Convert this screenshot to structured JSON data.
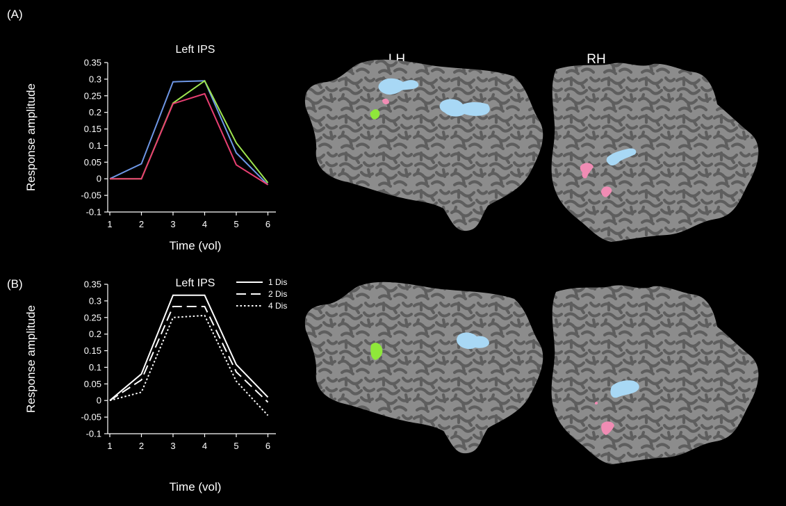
{
  "panels": [
    {
      "letter": "(A)"
    },
    {
      "letter": "(B)"
    }
  ],
  "hemispheres": {
    "left": "LH",
    "right": "RH"
  },
  "colors": {
    "background": "#000000",
    "cortex_light": "#8c8c8c",
    "cortex_dark": "#5e5e5e",
    "roi_blue": "#a8d8f5",
    "roi_pink": "#f08cb4",
    "roi_green": "#8fe83a"
  },
  "chart_data": [
    {
      "type": "line",
      "title": "Left IPS",
      "xlabel": "Time (vol)",
      "ylabel": "Response amplitude",
      "x": [
        1,
        2,
        3,
        4,
        5,
        6
      ],
      "ylim": [
        -0.1,
        0.35
      ],
      "yticks": [
        "0.35",
        "0.3",
        "0.25",
        "0.2",
        "0.15",
        "0.1",
        "0.05",
        "0",
        "-0.05",
        "-0.1"
      ],
      "xticks": [
        "1",
        "2",
        "3",
        "4",
        "5",
        "6"
      ],
      "grid": false,
      "series": [
        {
          "color": "#6e97e6",
          "dash": "solid",
          "values": [
            0.0,
            0.045,
            0.292,
            0.295,
            0.078,
            -0.018
          ]
        },
        {
          "color": "#9ee650",
          "dash": "solid",
          "values": [
            0.0,
            0.0,
            0.228,
            0.295,
            0.108,
            -0.012
          ]
        },
        {
          "color": "#e83f72",
          "dash": "solid",
          "values": [
            0.0,
            0.0,
            0.226,
            0.256,
            0.042,
            -0.018
          ]
        }
      ]
    },
    {
      "type": "line",
      "title": "Left IPS",
      "xlabel": "Time (vol)",
      "ylabel": "Response amplitude",
      "x": [
        1,
        2,
        3,
        4,
        5,
        6
      ],
      "ylim": [
        -0.1,
        0.35
      ],
      "yticks": [
        "0.35",
        "0.3",
        "0.25",
        "0.2",
        "0.15",
        "0.1",
        "0.05",
        "0",
        "-0.05",
        "-0.1"
      ],
      "xticks": [
        "1",
        "2",
        "3",
        "4",
        "5",
        "6"
      ],
      "grid": false,
      "legend_position": "top-right",
      "series": [
        {
          "name": "1 Dis",
          "color": "#ffffff",
          "dash": "solid",
          "values": [
            0.0,
            0.08,
            0.317,
            0.317,
            0.108,
            0.01
          ]
        },
        {
          "name": "2 Dis",
          "color": "#ffffff",
          "dash": "dashed",
          "values": [
            0.0,
            0.062,
            0.283,
            0.283,
            0.086,
            -0.005
          ]
        },
        {
          "name": "4 Dis",
          "color": "#ffffff",
          "dash": "dotted",
          "values": [
            0.0,
            0.025,
            0.25,
            0.256,
            0.058,
            -0.045
          ]
        }
      ]
    }
  ]
}
